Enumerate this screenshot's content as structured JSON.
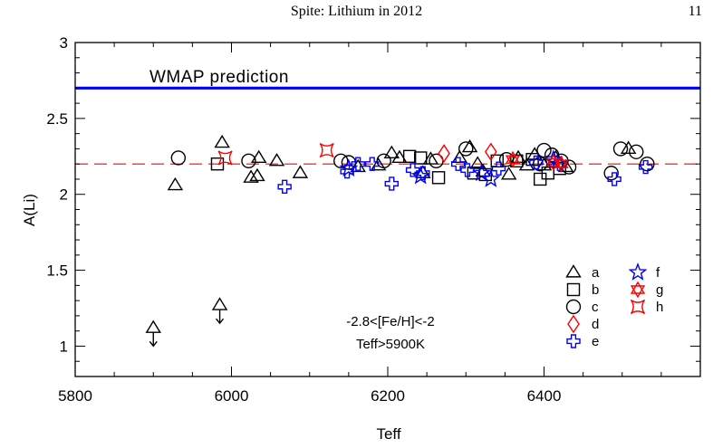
{
  "header": {
    "title": "Spite: Lithium in 2012",
    "page_number": "11"
  },
  "chart_data": {
    "type": "scatter",
    "xlabel": "Teff",
    "ylabel": "A(Li)",
    "xlim": [
      5800,
      6600
    ],
    "ylim": [
      0.8,
      3.0
    ],
    "xticks": [
      5800,
      6000,
      6200,
      6400
    ],
    "xtick_labels": [
      "5800",
      "6000",
      "6200",
      "6400"
    ],
    "yticks": [
      1.0,
      1.5,
      2.0,
      2.5,
      3.0
    ],
    "ytick_labels": [
      "1",
      "1.5",
      "2",
      "2.5",
      "3"
    ],
    "grid": false,
    "legend_position": "bottom-right",
    "reference_lines": [
      {
        "label": "WMAP prediction",
        "y": 2.7,
        "color": "#0000ff",
        "style": "solid"
      },
      {
        "label": "",
        "y": 2.2,
        "color": "#ff0000",
        "style": "dashed"
      }
    ],
    "annotations": [
      "-2.8<[Fe/H]<-2",
      "Teff>5900K"
    ],
    "series": [
      {
        "name": "a",
        "marker": "triangle",
        "color": "#000000",
        "points": [
          [
            5928,
            2.06
          ],
          [
            5988,
            2.34
          ],
          [
            6025,
            2.11
          ],
          [
            6033,
            2.12
          ],
          [
            6035,
            2.24
          ],
          [
            6058,
            2.22
          ],
          [
            6088,
            2.14
          ],
          [
            6162,
            2.18
          ],
          [
            6188,
            2.19
          ],
          [
            6205,
            2.27
          ],
          [
            6215,
            2.24
          ],
          [
            6245,
            2.14
          ],
          [
            6255,
            2.23
          ],
          [
            6292,
            2.24
          ],
          [
            6305,
            2.31
          ],
          [
            6315,
            2.2
          ],
          [
            6322,
            2.15
          ],
          [
            6355,
            2.13
          ],
          [
            6367,
            2.24
          ],
          [
            6378,
            2.19
          ],
          [
            6388,
            2.26
          ],
          [
            6400,
            2.19
          ],
          [
            6415,
            2.24
          ],
          [
            6428,
            2.18
          ],
          [
            6508,
            2.3
          ]
        ]
      },
      {
        "name": "a (upper limits)",
        "marker": "triangle-arrow",
        "color": "#000000",
        "points": [
          [
            5900,
            1.12
          ],
          [
            5985,
            1.27
          ]
        ]
      },
      {
        "name": "b",
        "marker": "square",
        "color": "#000000",
        "points": [
          [
            5982,
            2.2
          ],
          [
            6228,
            2.25
          ],
          [
            6242,
            2.24
          ],
          [
            6265,
            2.11
          ],
          [
            6310,
            2.14
          ],
          [
            6325,
            2.13
          ],
          [
            6340,
            2.22
          ],
          [
            6365,
            2.22
          ],
          [
            6385,
            2.23
          ],
          [
            6395,
            2.1
          ],
          [
            6405,
            2.14
          ],
          [
            6420,
            2.17
          ]
        ]
      },
      {
        "name": "c",
        "marker": "circle",
        "color": "#000000",
        "points": [
          [
            5932,
            2.24
          ],
          [
            6022,
            2.22
          ],
          [
            6140,
            2.22
          ],
          [
            6150,
            2.21
          ],
          [
            6195,
            2.22
          ],
          [
            6262,
            2.22
          ],
          [
            6300,
            2.3
          ],
          [
            6352,
            2.23
          ],
          [
            6395,
            2.2
          ],
          [
            6400,
            2.29
          ],
          [
            6410,
            2.26
          ],
          [
            6422,
            2.22
          ],
          [
            6432,
            2.18
          ],
          [
            6486,
            2.14
          ],
          [
            6498,
            2.3
          ],
          [
            6518,
            2.28
          ],
          [
            6532,
            2.2
          ]
        ]
      },
      {
        "name": "d",
        "marker": "diamond",
        "color": "#ff0000",
        "points": [
          [
            6272,
            2.27
          ],
          [
            6332,
            2.28
          ]
        ]
      },
      {
        "name": "e",
        "marker": "cross",
        "color": "#0000ff",
        "points": [
          [
            6068,
            2.05
          ],
          [
            6148,
            2.15
          ],
          [
            6162,
            2.2
          ],
          [
            6180,
            2.2
          ],
          [
            6205,
            2.07
          ],
          [
            6232,
            2.16
          ],
          [
            6245,
            2.14
          ],
          [
            6290,
            2.2
          ],
          [
            6302,
            2.16
          ],
          [
            6342,
            2.17
          ],
          [
            6390,
            2.21
          ],
          [
            6420,
            2.2
          ],
          [
            6490,
            2.1
          ],
          [
            6530,
            2.18
          ]
        ]
      },
      {
        "name": "f",
        "marker": "star",
        "color": "#0000ff",
        "points": [
          [
            6150,
            2.17
          ],
          [
            6242,
            2.12
          ],
          [
            6320,
            2.14
          ],
          [
            6332,
            2.1
          ],
          [
            6412,
            2.23
          ]
        ]
      },
      {
        "name": "g",
        "marker": "star-of-david",
        "color": "#ff0000",
        "points": [
          [
            6360,
            2.23
          ],
          [
            6412,
            2.21
          ],
          [
            6422,
            2.2
          ]
        ]
      },
      {
        "name": "h",
        "marker": "concave-square",
        "color": "#ff0000",
        "points": [
          [
            5992,
            2.24
          ],
          [
            6122,
            2.29
          ]
        ]
      }
    ],
    "legend": [
      {
        "name": "a",
        "marker": "triangle",
        "color": "#000000"
      },
      {
        "name": "b",
        "marker": "square",
        "color": "#000000"
      },
      {
        "name": "c",
        "marker": "circle",
        "color": "#000000"
      },
      {
        "name": "d",
        "marker": "diamond",
        "color": "#ff0000"
      },
      {
        "name": "e",
        "marker": "cross",
        "color": "#0000ff"
      },
      {
        "name": "f",
        "marker": "star",
        "color": "#0000ff"
      },
      {
        "name": "g",
        "marker": "star-of-david",
        "color": "#ff0000"
      },
      {
        "name": "h",
        "marker": "concave-square",
        "color": "#ff0000"
      }
    ]
  }
}
